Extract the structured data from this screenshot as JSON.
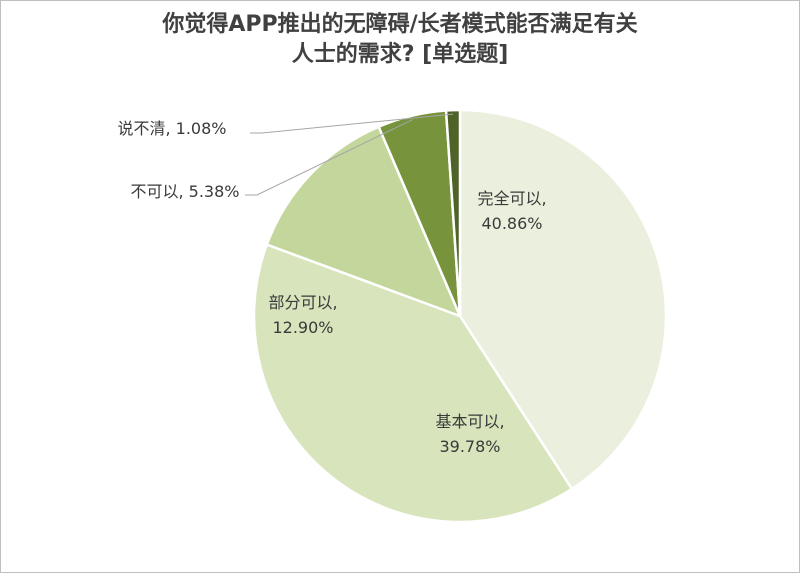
{
  "title_line1": "你觉得APP推出的无障碍/长者模式能否满足有关",
  "title_line2": "人士的需求? [单选题]",
  "chart_data": {
    "type": "pie",
    "title": "你觉得APP推出的无障碍/长者模式能否满足有关人士的需求? [单选题]",
    "start": "12 o'clock, clockwise",
    "slices": [
      {
        "label": "完全可以",
        "value": 40.86,
        "text": "40.86%",
        "color": "#EBF0DE"
      },
      {
        "label": "基本可以",
        "value": 39.78,
        "text": "39.78%",
        "color": "#D7E4BC"
      },
      {
        "label": "部分可以",
        "value": 12.9,
        "text": "12.90%",
        "color": "#C3D69B"
      },
      {
        "label": "不可以",
        "value": 5.38,
        "text": "5.38%",
        "color": "#77933C"
      },
      {
        "label": "说不清",
        "value": 1.08,
        "text": "1.08%",
        "color": "#4F6228"
      }
    ]
  }
}
